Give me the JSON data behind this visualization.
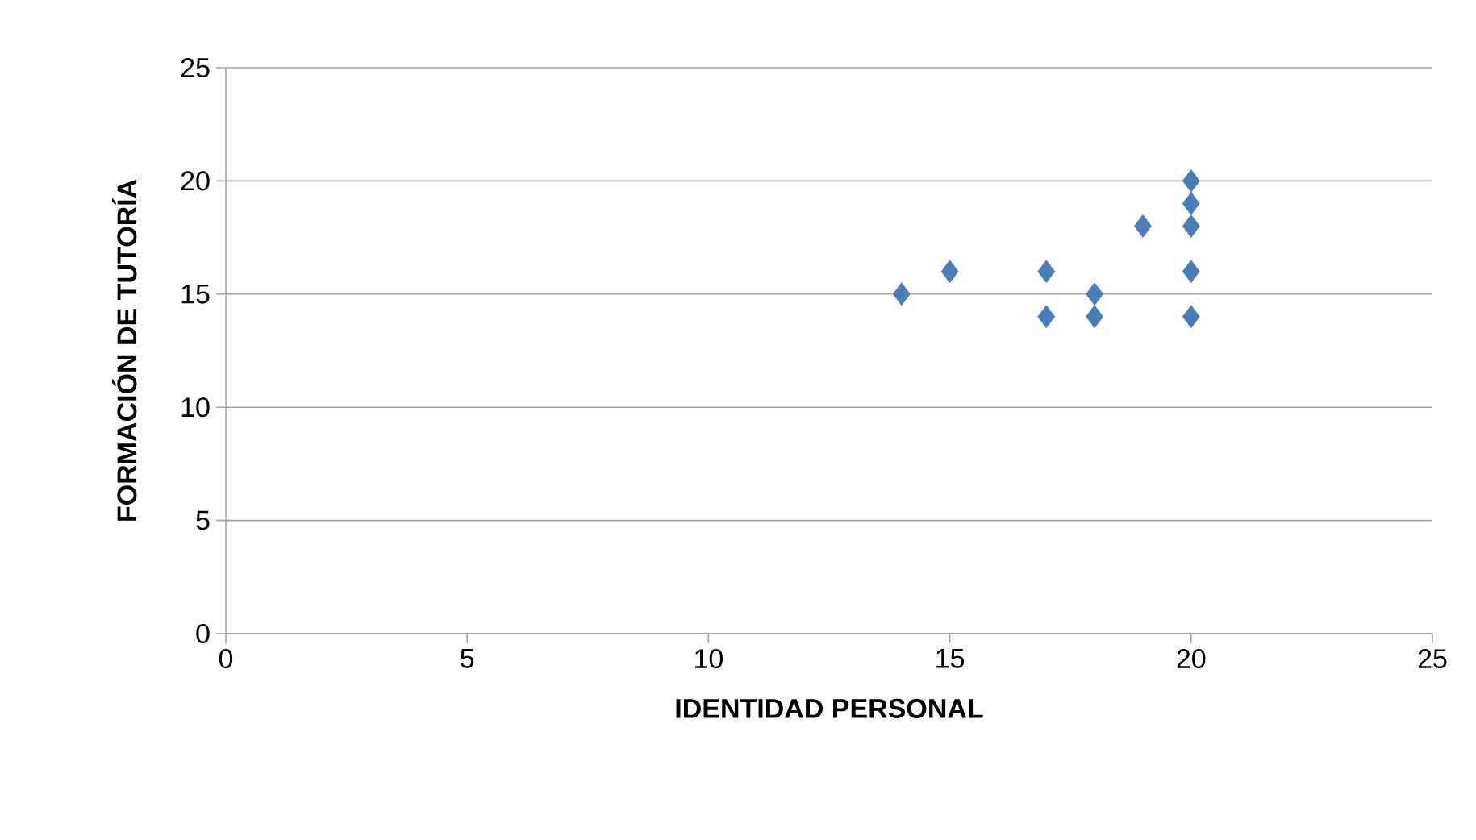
{
  "chart_data": {
    "type": "scatter",
    "xlabel": "IDENTIDAD PERSONAL",
    "ylabel": "FORMACIÓN DE TUTORÍA",
    "x": [
      14,
      15,
      17,
      17,
      18,
      18,
      19,
      20,
      20,
      20,
      20,
      20
    ],
    "values": [
      15,
      16,
      16,
      14,
      15,
      14,
      18,
      20,
      19,
      18,
      16,
      14
    ],
    "color": "#4a7ebb",
    "marker": "diamond",
    "xlim": [
      0,
      25
    ],
    "ylim": [
      0,
      25
    ],
    "xticks": [
      0,
      5,
      10,
      15,
      20,
      25
    ],
    "yticks": [
      0,
      5,
      10,
      15,
      20,
      25
    ],
    "grid": "y"
  }
}
